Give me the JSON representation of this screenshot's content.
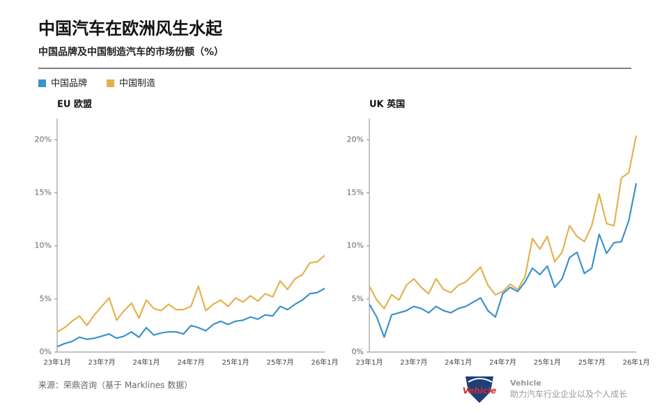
{
  "title": "中国汽车在欧洲风生水起",
  "subtitle": "中国品牌及中国制造汽车的市场份额（%）",
  "source": "来源：荣鼎咨询（基于 Marklines 数据）",
  "brand": {
    "logo": "Vehicle",
    "name": "Vehicle",
    "slogan": "助力汽车行业企业以及个人成长"
  },
  "chart_data": [
    {
      "type": "line",
      "title": "EU 欧盟",
      "categories": [
        "23年1月",
        null,
        null,
        null,
        null,
        null,
        "23年7月",
        null,
        null,
        null,
        null,
        null,
        "24年1月",
        null,
        null,
        null,
        null,
        null,
        "24年7月",
        null,
        null,
        null,
        null,
        null,
        "25年1月",
        null,
        null,
        null,
        null,
        null,
        "25年7月",
        null,
        null,
        null,
        null,
        null,
        "26年1月"
      ],
      "series": [
        {
          "name": "中国品牌",
          "color": "#3a93c8",
          "values": [
            0.5,
            0.8,
            1.0,
            1.4,
            1.2,
            1.3,
            1.5,
            1.7,
            1.3,
            1.5,
            1.9,
            1.4,
            2.3,
            1.6,
            1.8,
            1.9,
            1.9,
            1.7,
            2.5,
            2.3,
            2.0,
            2.6,
            2.9,
            2.6,
            2.9,
            3.0,
            3.3,
            3.1,
            3.5,
            3.4,
            4.3,
            4.0,
            4.5,
            4.9,
            5.5,
            5.6,
            6.0
          ]
        },
        {
          "name": "中国制造",
          "color": "#e3b24f",
          "values": [
            1.9,
            2.3,
            2.9,
            3.4,
            2.5,
            3.5,
            4.3,
            5.1,
            3.0,
            3.9,
            4.6,
            3.2,
            4.9,
            4.1,
            3.9,
            4.5,
            4.0,
            4.0,
            4.3,
            6.2,
            3.9,
            4.5,
            4.9,
            4.3,
            5.1,
            4.7,
            5.3,
            4.8,
            5.5,
            5.2,
            6.7,
            5.9,
            6.9,
            7.3,
            8.4,
            8.5,
            9.1
          ]
        }
      ],
      "ylim": [
        0,
        22
      ],
      "yticks": [
        {
          "value": 0,
          "label": "0%"
        },
        {
          "value": 5,
          "label": "5%"
        },
        {
          "value": 10,
          "label": "10%"
        },
        {
          "value": 15,
          "label": "15%"
        },
        {
          "value": 20,
          "label": "20%"
        }
      ]
    },
    {
      "type": "line",
      "title": "UK 英国",
      "categories": [
        "23年1月",
        null,
        null,
        null,
        null,
        null,
        "23年7月",
        null,
        null,
        null,
        null,
        null,
        "24年1月",
        null,
        null,
        null,
        null,
        null,
        "24年7月",
        null,
        null,
        null,
        null,
        null,
        "25年1月",
        null,
        null,
        null,
        null,
        null,
        "25年7月",
        null,
        null,
        null,
        null,
        null,
        "26年1月"
      ],
      "series": [
        {
          "name": "中国品牌",
          "color": "#3a93c8",
          "values": [
            4.5,
            3.3,
            1.4,
            3.5,
            3.7,
            3.9,
            4.3,
            4.1,
            3.7,
            4.3,
            3.9,
            3.7,
            4.1,
            4.3,
            4.7,
            5.1,
            3.9,
            3.3,
            5.5,
            6.1,
            5.7,
            6.6,
            7.9,
            7.3,
            8.1,
            6.1,
            6.9,
            8.9,
            9.4,
            7.4,
            7.9,
            11.1,
            9.3,
            10.3,
            10.4,
            12.4,
            15.9
          ]
        },
        {
          "name": "中国制造",
          "color": "#e3b24f",
          "values": [
            6.2,
            4.9,
            4.1,
            5.4,
            4.9,
            6.3,
            6.9,
            6.1,
            5.5,
            6.9,
            5.9,
            5.6,
            6.3,
            6.6,
            7.3,
            8.0,
            6.3,
            5.4,
            5.7,
            6.4,
            5.9,
            7.1,
            10.7,
            9.7,
            10.9,
            8.5,
            9.4,
            11.9,
            10.9,
            10.4,
            11.9,
            14.9,
            12.1,
            11.9,
            16.4,
            16.9,
            20.4
          ]
        }
      ],
      "ylim": [
        0,
        22
      ],
      "yticks": [
        {
          "value": 0,
          "label": "0%"
        },
        {
          "value": 5,
          "label": "5%"
        },
        {
          "value": 10,
          "label": "10%"
        },
        {
          "value": 15,
          "label": "15%"
        },
        {
          "value": 20,
          "label": "20%"
        }
      ]
    }
  ]
}
